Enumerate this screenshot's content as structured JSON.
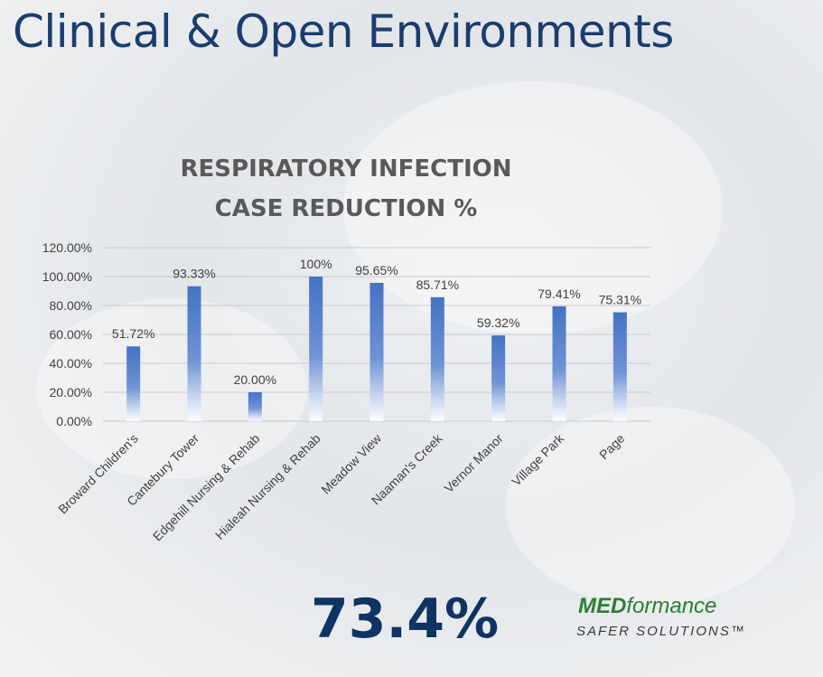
{
  "page": {
    "title": "Clinical &  Open Environments",
    "summary_value": "73.4%"
  },
  "logo": {
    "brand_prefix": "MED",
    "brand_suffix": "formance",
    "tagline": "SAFER SOLUTIONS™"
  },
  "chart_data": {
    "type": "bar",
    "title": "RESPIRATORY INFECTION CASE REDUCTION %",
    "title_lines": [
      "RESPIRATORY INFECTION",
      "CASE REDUCTION %"
    ],
    "categories": [
      "Broward Children's",
      "Cantebury Tower",
      "Edgehill Nursing & Rehab",
      "Hialeah Nursing & Rehab",
      "Meadow View",
      "Naaman's Creek",
      "Vernor Manor",
      "Village Park",
      "Page"
    ],
    "values": [
      51.72,
      93.33,
      20.0,
      100,
      95.65,
      85.71,
      59.32,
      79.41,
      75.31
    ],
    "data_labels": [
      "51.72%",
      "93.33%",
      "20.00%",
      "100%",
      "95.65%",
      "85.71%",
      "59.32%",
      "79.41%",
      "75.31%"
    ],
    "ylim": [
      0,
      120
    ],
    "yticks": [
      0,
      20,
      40,
      60,
      80,
      100,
      120
    ],
    "ytick_labels": [
      "0.00%",
      "20.00%",
      "40.00%",
      "60.00%",
      "80.00%",
      "100.00%",
      "120.00%"
    ],
    "grid": true,
    "bar_color": "#4472c4",
    "xlabel": "",
    "ylabel": ""
  }
}
